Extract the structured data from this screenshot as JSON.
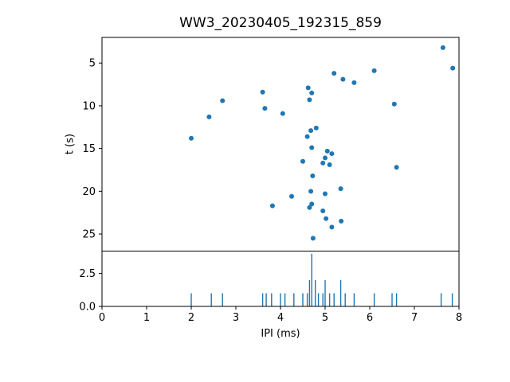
{
  "figure": {
    "title": "WW3_20230405_192315_859",
    "background": "#ffffff",
    "accent_color": "#1f77b4",
    "axis_color": "#000000"
  },
  "chart_data": [
    {
      "type": "scatter",
      "title": "WW3_20230405_192315_859",
      "xlabel": "",
      "ylabel": "t (s)",
      "xlim": [
        0,
        8
      ],
      "ylim": [
        2,
        27
      ],
      "y_inverted": true,
      "yticks": [
        5,
        10,
        15,
        20,
        25
      ],
      "grid": false,
      "legend": "none",
      "points": [
        [
          2.0,
          13.8
        ],
        [
          2.4,
          11.3
        ],
        [
          2.7,
          9.4
        ],
        [
          3.6,
          8.4
        ],
        [
          3.65,
          10.3
        ],
        [
          3.82,
          21.7
        ],
        [
          4.05,
          10.9
        ],
        [
          4.25,
          20.6
        ],
        [
          4.5,
          16.5
        ],
        [
          4.6,
          13.6
        ],
        [
          4.62,
          7.9
        ],
        [
          4.65,
          9.3
        ],
        [
          4.65,
          21.9
        ],
        [
          4.68,
          12.9
        ],
        [
          4.68,
          20.0
        ],
        [
          4.7,
          8.5
        ],
        [
          4.7,
          14.9
        ],
        [
          4.7,
          21.5
        ],
        [
          4.72,
          18.2
        ],
        [
          4.73,
          25.5
        ],
        [
          4.8,
          12.6
        ],
        [
          4.95,
          16.7
        ],
        [
          4.95,
          22.3
        ],
        [
          5.0,
          16.1
        ],
        [
          5.0,
          20.3
        ],
        [
          5.02,
          23.2
        ],
        [
          5.05,
          15.3
        ],
        [
          5.1,
          16.9
        ],
        [
          5.15,
          15.6
        ],
        [
          5.15,
          24.2
        ],
        [
          5.2,
          6.2
        ],
        [
          5.35,
          19.7
        ],
        [
          5.36,
          23.5
        ],
        [
          5.4,
          6.9
        ],
        [
          5.65,
          7.3
        ],
        [
          6.1,
          5.9
        ],
        [
          6.55,
          9.8
        ],
        [
          6.6,
          17.2
        ],
        [
          7.64,
          3.2
        ],
        [
          7.86,
          5.6
        ]
      ]
    },
    {
      "type": "bar",
      "xlabel": "IPI (ms)",
      "ylabel": "",
      "xlim": [
        0,
        8
      ],
      "ylim": [
        0,
        4.2
      ],
      "xticks": [
        0,
        1,
        2,
        3,
        4,
        5,
        6,
        7,
        8
      ],
      "yticks": [
        "0.0",
        "2.5"
      ],
      "grid": false,
      "legend": "none",
      "x": [
        2.0,
        2.45,
        2.7,
        3.6,
        3.68,
        3.8,
        4.0,
        4.1,
        4.3,
        4.5,
        4.6,
        4.65,
        4.7,
        4.78,
        4.85,
        4.95,
        5.0,
        5.1,
        5.2,
        5.35,
        5.45,
        5.65,
        6.1,
        6.5,
        6.6,
        7.6,
        7.85
      ],
      "heights": [
        1,
        1,
        1,
        1,
        1,
        1,
        1,
        1,
        1,
        1,
        1,
        2,
        4,
        2,
        1,
        1,
        2,
        1,
        1,
        2,
        1,
        1,
        1,
        1,
        1,
        1,
        1
      ]
    }
  ]
}
